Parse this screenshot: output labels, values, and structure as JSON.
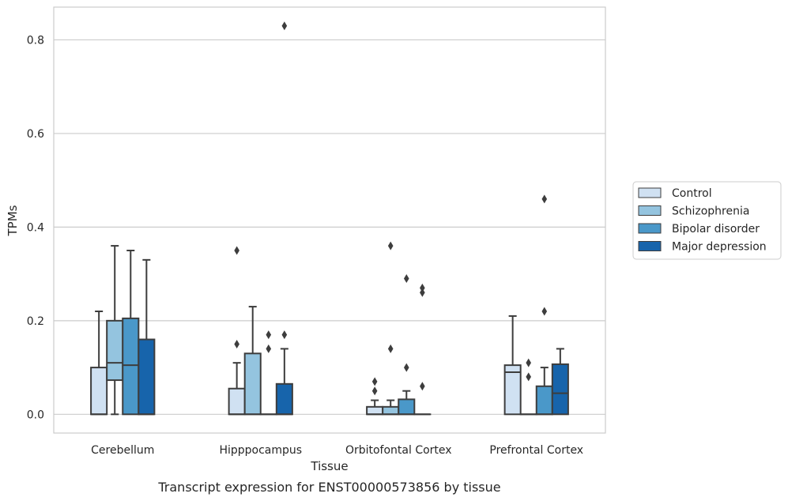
{
  "caption": "Transcript expression for ENST00000573856 by tissue",
  "chart_data": {
    "type": "boxplot",
    "xlabel": "Tissue",
    "ylabel": "TPMs",
    "ylim": [
      -0.04,
      0.87
    ],
    "yticks": [
      "0.0",
      "0.2",
      "0.4",
      "0.6",
      "0.8"
    ],
    "grid": "horizontal",
    "legend_position": "right",
    "categories": [
      "Cerebellum",
      "Hipppocampus",
      "Orbitofontal Cortex",
      "Prefrontal Cortex"
    ],
    "series": [
      {
        "name": "Control",
        "color": "#d0e1f2",
        "boxes": [
          {
            "min": 0.0,
            "q1": 0.0,
            "median": 0.0,
            "q3": 0.1,
            "max": 0.22,
            "outliers": []
          },
          {
            "min": 0.0,
            "q1": 0.0,
            "median": 0.0,
            "q3": 0.055,
            "max": 0.11,
            "outliers": [
              0.15,
              0.35
            ]
          },
          {
            "min": 0.0,
            "q1": 0.0,
            "median": 0.0,
            "q3": 0.016,
            "max": 0.03,
            "outliers": [
              0.05,
              0.07
            ]
          },
          {
            "min": 0.0,
            "q1": 0.0,
            "median": 0.09,
            "q3": 0.105,
            "max": 0.21,
            "outliers": []
          }
        ]
      },
      {
        "name": "Schizophrenia",
        "color": "#94c4df",
        "boxes": [
          {
            "min": 0.0,
            "q1": 0.073,
            "median": 0.11,
            "q3": 0.2,
            "max": 0.36,
            "outliers": []
          },
          {
            "min": 0.0,
            "q1": 0.0,
            "median": 0.0,
            "q3": 0.13,
            "max": 0.23,
            "outliers": []
          },
          {
            "min": 0.0,
            "q1": 0.0,
            "median": 0.0,
            "q3": 0.016,
            "max": 0.03,
            "outliers": [
              0.14,
              0.36
            ]
          },
          {
            "min": 0.0,
            "q1": 0.0,
            "median": 0.0,
            "q3": 0.0,
            "max": 0.0,
            "outliers": [
              0.08,
              0.11
            ]
          }
        ]
      },
      {
        "name": "Bipolar disorder",
        "color": "#4a98c9",
        "boxes": [
          {
            "min": 0.0,
            "q1": 0.0,
            "median": 0.105,
            "q3": 0.205,
            "max": 0.35,
            "outliers": []
          },
          {
            "min": 0.0,
            "q1": 0.0,
            "median": 0.0,
            "q3": 0.0,
            "max": 0.0,
            "outliers": [
              0.14,
              0.17
            ]
          },
          {
            "min": 0.0,
            "q1": 0.0,
            "median": 0.0,
            "q3": 0.032,
            "max": 0.05,
            "outliers": [
              0.1,
              0.29
            ]
          },
          {
            "min": 0.0,
            "q1": 0.0,
            "median": 0.0,
            "q3": 0.06,
            "max": 0.1,
            "outliers": [
              0.22,
              0.46
            ]
          }
        ]
      },
      {
        "name": "Major depression",
        "color": "#1764ab",
        "boxes": [
          {
            "min": 0.0,
            "q1": 0.0,
            "median": 0.0,
            "q3": 0.16,
            "max": 0.33,
            "outliers": []
          },
          {
            "min": 0.0,
            "q1": 0.0,
            "median": 0.0,
            "q3": 0.065,
            "max": 0.14,
            "outliers": [
              0.17,
              0.83
            ]
          },
          {
            "min": 0.0,
            "q1": 0.0,
            "median": 0.0,
            "q3": 0.0,
            "max": 0.0,
            "outliers": [
              0.06,
              0.26,
              0.27
            ]
          },
          {
            "min": 0.0,
            "q1": 0.0,
            "median": 0.045,
            "q3": 0.107,
            "max": 0.14,
            "outliers": []
          }
        ]
      }
    ]
  }
}
